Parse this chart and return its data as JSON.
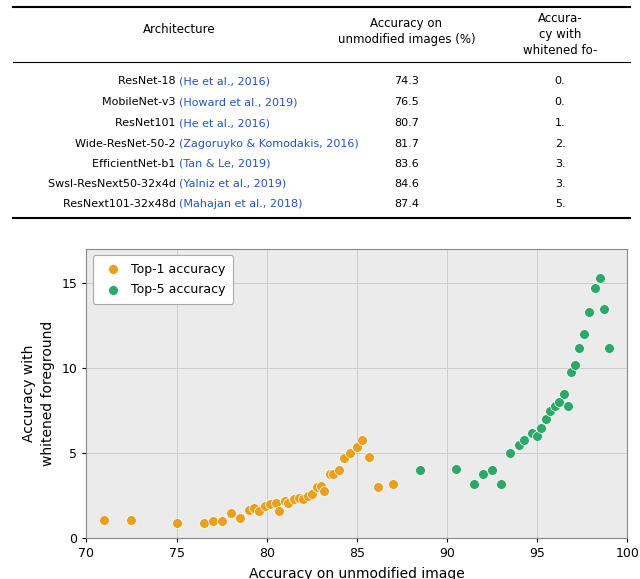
{
  "table_rows": [
    [
      "ResNet-18 ",
      "(He et al., 2016)",
      "74.3",
      "0."
    ],
    [
      "MobileNet-v3 ",
      "(Howard et al., 2019)",
      "76.5",
      "0."
    ],
    [
      "ResNet101 ",
      "(He et al., 2016)",
      "80.7",
      "1."
    ],
    [
      "Wide-ResNet-50-2 ",
      "(Zagoruyko & Komodakis, 2016)",
      "81.7",
      "2."
    ],
    [
      "EfficientNet-b1 ",
      "(Tan & Le, 2019)",
      "83.6",
      "3."
    ],
    [
      "Swsl-ResNext50-32x4d ",
      "(Yalniz et al., 2019)",
      "84.6",
      "3."
    ],
    [
      "ResNext101-32x48d ",
      "(Mahajan et al., 2018)",
      "87.4",
      "5."
    ]
  ],
  "col1_header": "Architecture",
  "col2_header": "Accuracy on\nunmodified images (%)",
  "col3_header": "Accura-\ncy with\nwhitened fo-",
  "top1_x": [
    71.0,
    72.5,
    75.0,
    76.5,
    77.0,
    77.5,
    78.0,
    78.5,
    79.0,
    79.3,
    79.6,
    79.9,
    80.2,
    80.5,
    80.7,
    81.0,
    81.2,
    81.5,
    81.8,
    82.0,
    82.3,
    82.5,
    82.8,
    83.0,
    83.2,
    83.5,
    83.7,
    84.0,
    84.3,
    84.6,
    85.0,
    85.3,
    85.7,
    86.2,
    87.0
  ],
  "top1_y": [
    1.1,
    1.1,
    0.9,
    0.9,
    1.0,
    1.0,
    1.5,
    1.2,
    1.7,
    1.8,
    1.6,
    1.9,
    2.0,
    2.1,
    1.6,
    2.2,
    2.1,
    2.3,
    2.4,
    2.3,
    2.5,
    2.6,
    3.0,
    3.1,
    2.8,
    3.8,
    3.8,
    4.0,
    4.7,
    5.0,
    5.4,
    5.8,
    4.8,
    3.0,
    3.2
  ],
  "top5_x": [
    88.5,
    90.5,
    91.5,
    92.0,
    92.5,
    93.0,
    93.5,
    94.0,
    94.3,
    94.7,
    95.0,
    95.2,
    95.5,
    95.7,
    96.0,
    96.2,
    96.5,
    96.7,
    96.9,
    97.1,
    97.3,
    97.6,
    97.9,
    98.2,
    98.5,
    98.7,
    99.0
  ],
  "top5_y": [
    4.0,
    4.1,
    3.2,
    3.8,
    4.0,
    3.2,
    5.0,
    5.5,
    5.8,
    6.2,
    6.0,
    6.5,
    7.0,
    7.5,
    7.8,
    8.0,
    8.5,
    7.8,
    9.8,
    10.2,
    11.2,
    12.0,
    13.3,
    14.7,
    15.3,
    13.5,
    11.2
  ],
  "top1_color": "#E8A020",
  "top5_color": "#2DA86A",
  "xlabel": "Accuracy on unmodified image",
  "ylabel": "Accuracy with\nwhitened foreground",
  "xlim": [
    70,
    100
  ],
  "ylim": [
    0,
    17
  ],
  "yticks": [
    0,
    5,
    10,
    15
  ],
  "xticks": [
    70,
    75,
    80,
    85,
    90,
    95,
    100
  ],
  "plot_bg_color": "#ebebeb",
  "grid_color": "#cccccc",
  "cite_color": "#2255BB",
  "black_color": "#000000"
}
